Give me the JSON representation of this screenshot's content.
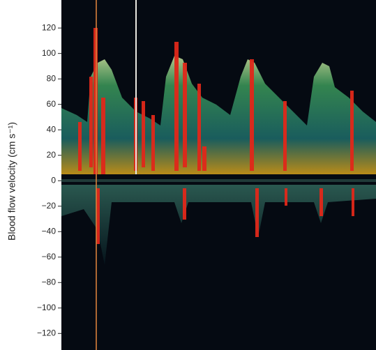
{
  "chart_data": {
    "type": "spectrogram",
    "ylabel": "Blood flow velocity (cm s⁻¹)",
    "ylim": [
      -133,
      142
    ],
    "yticks": [
      {
        "value": -120,
        "label": "−120"
      },
      {
        "value": -100,
        "label": "−100"
      },
      {
        "value": -80,
        "label": "−80"
      },
      {
        "value": -60,
        "label": "−60"
      },
      {
        "value": -40,
        "label": "−40"
      },
      {
        "value": -20,
        "label": "−20"
      },
      0,
      20,
      40,
      60,
      80,
      100,
      120
    ]
  }
}
